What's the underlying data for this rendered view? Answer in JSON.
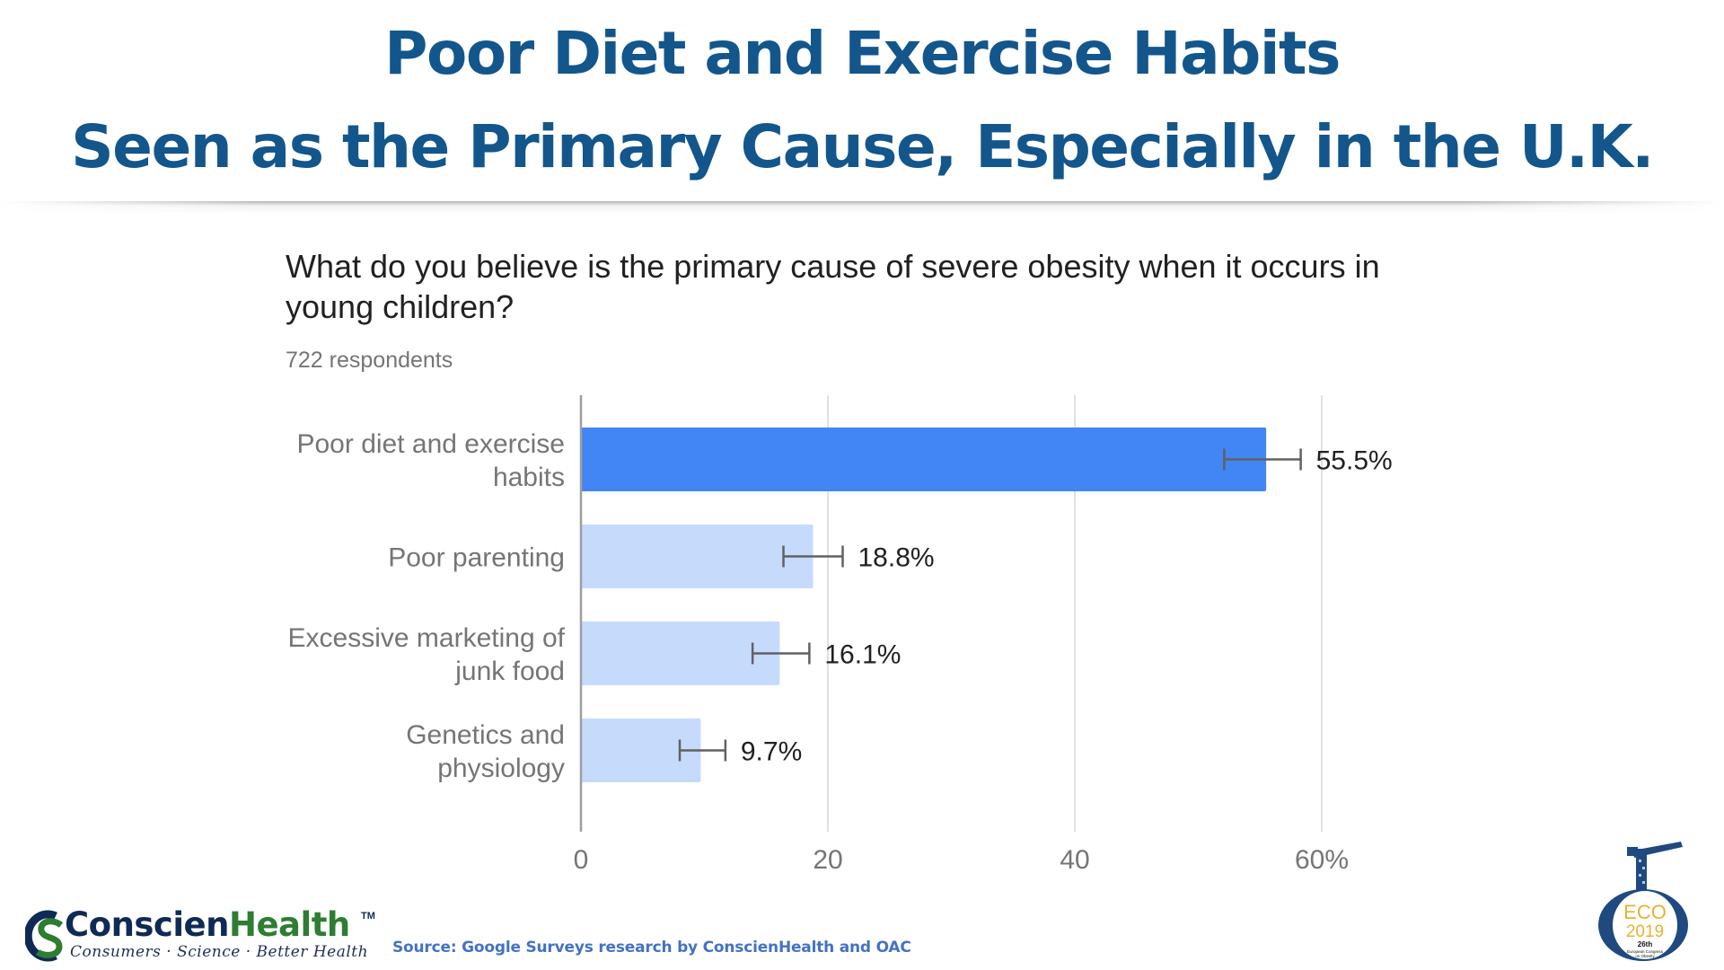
{
  "slide": {
    "title_line1": "Poor Diet and Exercise Habits",
    "title_line2": "Seen as the Primary Cause, Especially in the U.K.",
    "title_color": "#13568c"
  },
  "survey": {
    "question": "What do you believe is the primary cause of severe obesity when it occurs in young children?",
    "respondents": "722 respondents"
  },
  "chart_data": {
    "type": "bar",
    "orientation": "horizontal",
    "title": "What do you believe is the primary cause of severe obesity when it occurs in young children?",
    "subtitle": "722 respondents",
    "xlabel": "",
    "ylabel": "",
    "xlim": [
      0,
      60
    ],
    "grid": true,
    "x_ticks": [
      0,
      20,
      40,
      60
    ],
    "x_tick_labels": [
      "0",
      "20",
      "40",
      "60%"
    ],
    "categories": [
      "Poor diet and exercise habits",
      "Poor parenting",
      "Excessive marketing of junk food",
      "Genetics and physiology"
    ],
    "category_label_lines": [
      [
        "Poor diet and exercise",
        "habits"
      ],
      [
        "Poor parenting"
      ],
      [
        "Excessive marketing of",
        "junk food"
      ],
      [
        "Genetics and",
        "physiology"
      ]
    ],
    "values": [
      55.5,
      18.8,
      16.1,
      9.7
    ],
    "value_labels": [
      "55.5%",
      "18.8%",
      "16.1%",
      "9.7%"
    ],
    "error_bars": [
      {
        "low": 52.1,
        "high": 58.3
      },
      {
        "low": 16.4,
        "high": 21.2
      },
      {
        "low": 13.9,
        "high": 18.5
      },
      {
        "low": 8.0,
        "high": 11.7
      }
    ],
    "colors": [
      "#4285f4",
      "#c6dafc",
      "#c6dafc",
      "#c6dafc"
    ],
    "legend": "none"
  },
  "footer": {
    "logo_name_part1": "Conscien",
    "logo_name_part2": "Health",
    "logo_tm": "TM",
    "logo_tagline": "Consumers · Science · Better Health",
    "source": "Source: Google Surveys research by ConscienHealth and OAC",
    "eco_logo": {
      "line1": "ECO",
      "line2": "2019",
      "line3": "26th",
      "line4": "European Congress",
      "line5": "on Obesity"
    }
  }
}
